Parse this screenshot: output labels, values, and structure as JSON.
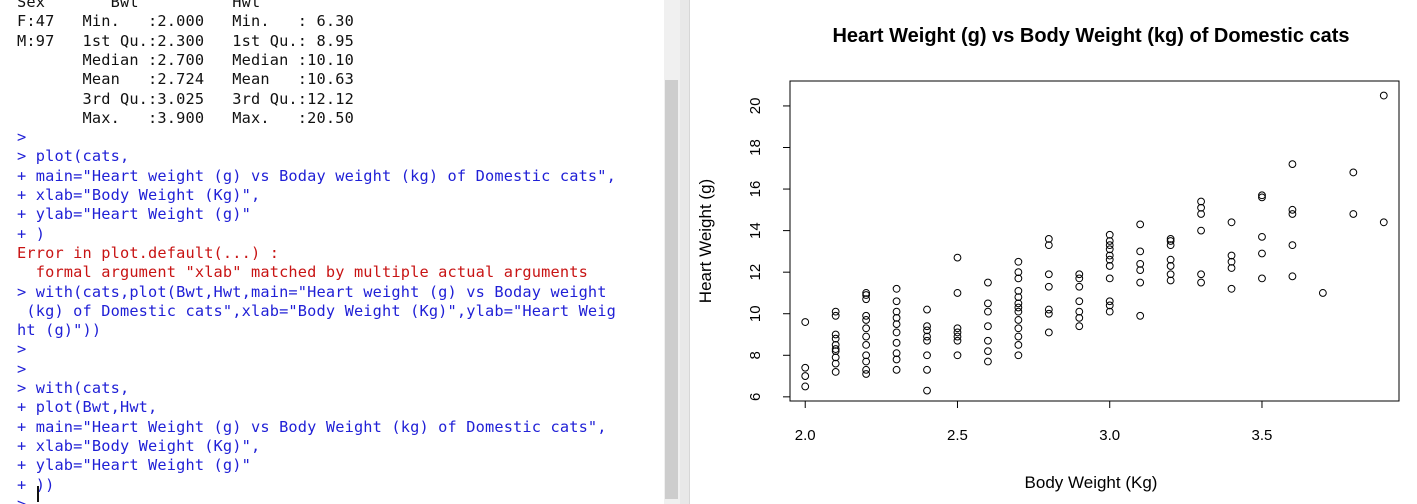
{
  "console": {
    "lines": [
      {
        "text": "Sex       Bwt          Hwt",
        "color": "black"
      },
      {
        "text": "F:47   Min.   :2.000   Min.   : 6.30",
        "color": "black"
      },
      {
        "text": "M:97   1st Qu.:2.300   1st Qu.: 8.95",
        "color": "black"
      },
      {
        "text": "       Median :2.700   Median :10.10",
        "color": "black"
      },
      {
        "text": "       Mean   :2.724   Mean   :10.63",
        "color": "black"
      },
      {
        "text": "       3rd Qu.:3.025   3rd Qu.:12.12",
        "color": "black"
      },
      {
        "text": "       Max.   :3.900   Max.   :20.50",
        "color": "black"
      },
      {
        "text": ">",
        "color": "blue"
      },
      {
        "text": "> plot(cats,",
        "color": "blue"
      },
      {
        "text": "+ main=\"Heart weight (g) vs Boday weight (kg) of Domestic cats\",",
        "color": "blue"
      },
      {
        "text": "+ xlab=\"Body Weight (Kg)\",",
        "color": "blue"
      },
      {
        "text": "+ ylab=\"Heart Weight (g)\"",
        "color": "blue"
      },
      {
        "text": "+ )",
        "color": "blue"
      },
      {
        "text": "Error in plot.default(...) :",
        "color": "red"
      },
      {
        "text": "  formal argument \"xlab\" matched by multiple actual arguments",
        "color": "red"
      },
      {
        "text": "> with(cats,plot(Bwt,Hwt,main=\"Heart weight (g) vs Boday weight",
        "color": "blue"
      },
      {
        "text": " (kg) of Domestic cats\",xlab=\"Body Weight (Kg)\",ylab=\"Heart Weig",
        "color": "blue"
      },
      {
        "text": "ht (g)\"))",
        "color": "blue"
      },
      {
        "text": ">",
        "color": "blue"
      },
      {
        "text": ">",
        "color": "blue"
      },
      {
        "text": "> with(cats,",
        "color": "blue"
      },
      {
        "text": "+ plot(Bwt,Hwt,",
        "color": "blue"
      },
      {
        "text": "+ main=\"Heart Weight (g) vs Body Weight (kg) of Domestic cats\",",
        "color": "blue"
      },
      {
        "text": "+ xlab=\"Body Weight (Kg)\",",
        "color": "blue"
      },
      {
        "text": "+ ylab=\"Heart Weight (g)\"",
        "color": "blue"
      },
      {
        "text": "+ ))",
        "color": "blue"
      },
      {
        "text": ">",
        "color": "blue"
      }
    ],
    "colors": {
      "prompt_blue": "#1f1fd6",
      "error_red": "#c81414",
      "output_black": "#111111"
    }
  },
  "chart_data": {
    "type": "scatter",
    "title": "Heart Weight (g) vs Body Weight (kg) of Domestic cats",
    "xlabel": "Body Weight (Kg)",
    "ylabel": "Heart Weight (g)",
    "xlim": [
      1.95,
      3.95
    ],
    "ylim": [
      5.8,
      21.2
    ],
    "xticks": [
      "2.0",
      "2.5",
      "3.0",
      "3.5"
    ],
    "yticks": [
      "6",
      "8",
      "10",
      "12",
      "14",
      "16",
      "18",
      "20"
    ],
    "grid": false,
    "marker": "open-circle",
    "series": [
      {
        "x": [
          2.0,
          2.0,
          2.0,
          2.0,
          2.1,
          2.1,
          2.1,
          2.1,
          2.1,
          2.1,
          2.1,
          2.1,
          2.1,
          2.1,
          2.2,
          2.2,
          2.2,
          2.2,
          2.2,
          2.2,
          2.2,
          2.2,
          2.2,
          2.2,
          2.2,
          2.2,
          2.3,
          2.3,
          2.3,
          2.3,
          2.3,
          2.3,
          2.3,
          2.3,
          2.3,
          2.3,
          2.4,
          2.4,
          2.4,
          2.4,
          2.4,
          2.4,
          2.4,
          2.4,
          2.5,
          2.5,
          2.5,
          2.5,
          2.5,
          2.5,
          2.5,
          2.6,
          2.6,
          2.6,
          2.6,
          2.6,
          2.6,
          2.6,
          2.7,
          2.7,
          2.7,
          2.7,
          2.7,
          2.7,
          2.7,
          2.7,
          2.7,
          2.7,
          2.7,
          2.7,
          2.7,
          2.8,
          2.8,
          2.8,
          2.8,
          2.8,
          2.8,
          2.8,
          2.9,
          2.9,
          2.9,
          2.9,
          2.9,
          2.9,
          2.9,
          3.0,
          3.0,
          3.0,
          3.0,
          3.0,
          3.0,
          3.0,
          3.0,
          3.0,
          3.0,
          3.0,
          3.1,
          3.1,
          3.1,
          3.1,
          3.1,
          3.1,
          3.2,
          3.2,
          3.2,
          3.2,
          3.2,
          3.2,
          3.2,
          3.3,
          3.3,
          3.3,
          3.3,
          3.3,
          3.3,
          3.4,
          3.4,
          3.4,
          3.4,
          3.4,
          3.5,
          3.5,
          3.5,
          3.5,
          3.5,
          3.6,
          3.6,
          3.6,
          3.6,
          3.6,
          3.7,
          3.8,
          3.8,
          3.9,
          3.9
        ],
        "y": [
          6.5,
          7.0,
          7.4,
          9.6,
          7.2,
          7.6,
          7.9,
          8.2,
          8.3,
          8.5,
          8.8,
          9.0,
          9.9,
          10.1,
          7.1,
          7.3,
          7.7,
          8.0,
          8.5,
          8.9,
          9.3,
          9.7,
          9.9,
          10.7,
          10.9,
          11.0,
          7.3,
          7.8,
          8.1,
          8.6,
          9.1,
          9.5,
          9.8,
          10.1,
          10.6,
          11.2,
          6.3,
          7.3,
          8.0,
          8.7,
          8.9,
          9.2,
          9.4,
          10.2,
          8.0,
          8.7,
          8.9,
          9.1,
          9.3,
          11.0,
          12.7,
          7.7,
          8.2,
          8.7,
          9.4,
          10.1,
          10.5,
          11.5,
          8.0,
          8.5,
          8.9,
          9.3,
          9.7,
          10.1,
          10.3,
          10.5,
          10.8,
          11.1,
          11.7,
          12.0,
          12.5,
          9.1,
          10.0,
          10.2,
          11.3,
          11.9,
          13.3,
          13.6,
          9.4,
          9.8,
          10.1,
          10.6,
          11.3,
          11.7,
          11.9,
          10.1,
          10.4,
          10.6,
          11.7,
          12.3,
          12.6,
          12.8,
          13.1,
          13.3,
          13.5,
          13.8,
          9.9,
          11.5,
          12.1,
          12.4,
          13.0,
          14.3,
          11.6,
          11.9,
          12.3,
          12.6,
          13.3,
          13.5,
          13.6,
          11.5,
          11.9,
          14.0,
          14.8,
          15.1,
          15.4,
          11.2,
          12.2,
          12.5,
          12.8,
          14.4,
          11.7,
          12.9,
          13.7,
          15.6,
          15.7,
          11.8,
          13.3,
          14.8,
          15.0,
          17.2,
          11.0,
          14.8,
          16.8,
          14.4,
          20.5
        ]
      }
    ]
  }
}
